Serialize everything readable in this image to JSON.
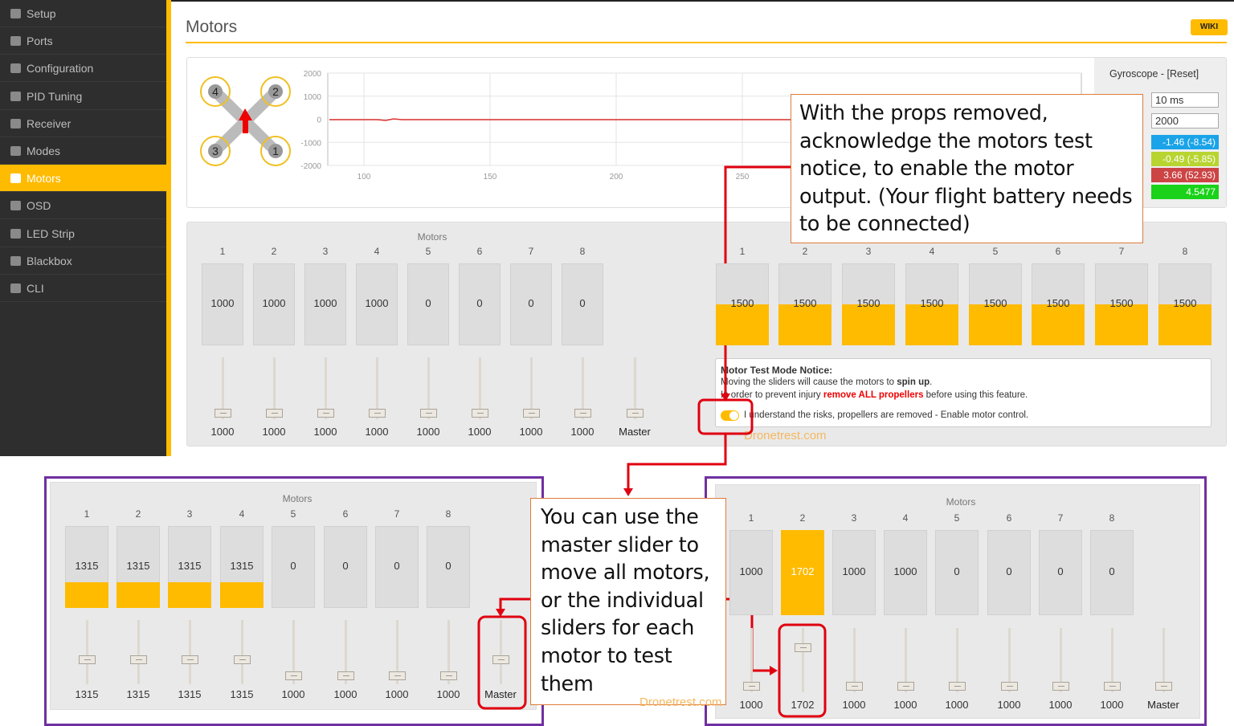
{
  "sidebar": {
    "items": [
      "Setup",
      "Ports",
      "Configuration",
      "PID Tuning",
      "Receiver",
      "Modes",
      "Motors",
      "OSD",
      "LED Strip",
      "Blackbox",
      "CLI"
    ]
  },
  "header": {
    "title": "Motors",
    "wiki": "WIKI"
  },
  "graph": {
    "quad_labels": [
      "4",
      "2",
      "3",
      "1"
    ],
    "yticks": [
      "2000",
      "1000",
      "0",
      "-1000",
      "-2000"
    ],
    "xticks": [
      "100",
      "150",
      "200",
      "250"
    ]
  },
  "gyro": {
    "title": "Gyroscope - [Reset]",
    "refresh": "10 ms",
    "scale": "2000",
    "readings": [
      "-1.46 (-8.54)",
      "-0.49 (-5.85)",
      "3.66 (52.93)",
      "4.5477"
    ]
  },
  "motors_panel": {
    "label": "Motors",
    "numbers": [
      "1",
      "2",
      "3",
      "4",
      "5",
      "6",
      "7",
      "8"
    ],
    "values": [
      "1000",
      "1000",
      "1000",
      "1000",
      "0",
      "0",
      "0",
      "0"
    ],
    "slider_values": [
      "1000",
      "1000",
      "1000",
      "1000",
      "1000",
      "1000",
      "1000",
      "1000"
    ],
    "master": "Master"
  },
  "outputs": {
    "numbers": [
      "1",
      "2",
      "3",
      "4",
      "5",
      "6",
      "7",
      "8"
    ],
    "values": [
      "1500",
      "1500",
      "1500",
      "1500",
      "1500",
      "1500",
      "1500",
      "1500"
    ]
  },
  "notice": {
    "title": "Motor Test Mode Notice:",
    "line1": "Moving the sliders will cause the motors to ",
    "line1_bold": "spin up",
    "line1_end": ".",
    "line2": "In order to prevent injury ",
    "line2_red": "remove ALL propellers",
    "line2_end": " before using this feature.",
    "toggle_label": "I understand the risks, propellers are removed - Enable motor control."
  },
  "watermark": "Dronetrest.com",
  "callout_1": "With the props removed, acknowledge the motors test notice, to enable the motor output.  (Your flight battery needs to be connected)",
  "example_master": {
    "label": "Motors",
    "numbers": [
      "1",
      "2",
      "3",
      "4",
      "5",
      "6",
      "7",
      "8"
    ],
    "values": [
      "1315",
      "1315",
      "1315",
      "1315",
      "0",
      "0",
      "0",
      "0"
    ],
    "slider_values": [
      "1315",
      "1315",
      "1315",
      "1315",
      "1000",
      "1000",
      "1000",
      "1000"
    ],
    "master": "Master"
  },
  "callout_2": "You can use the master slider to move all motors, or the individual sliders for each motor to test them",
  "example_single": {
    "label": "Motors",
    "numbers": [
      "1",
      "2",
      "3",
      "4",
      "5",
      "6",
      "7",
      "8"
    ],
    "values": [
      "1000",
      "1702",
      "1000",
      "1000",
      "0",
      "0",
      "0",
      "0"
    ],
    "slider_values": [
      "1000",
      "1702",
      "1000",
      "1000",
      "1000",
      "1000",
      "1000",
      "1000"
    ],
    "master": "Master"
  }
}
